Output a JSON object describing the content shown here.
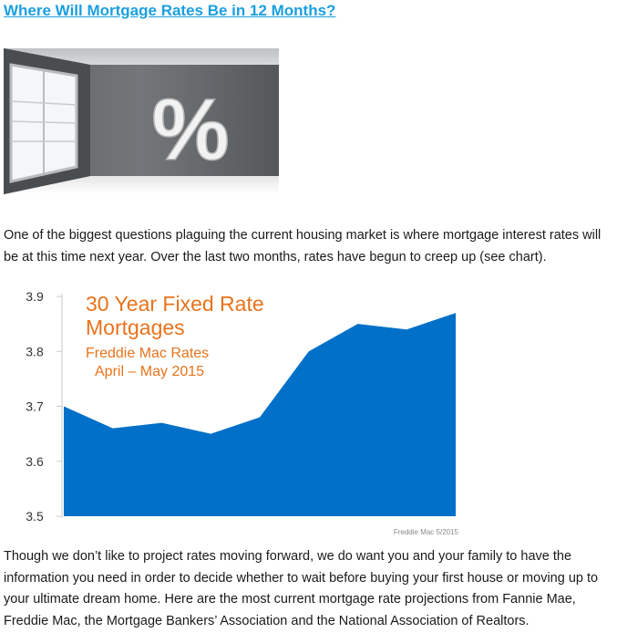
{
  "article": {
    "title": "Where Will Mortgage Rates Be in 12 Months?",
    "hero_symbol": "%",
    "paragraph1": "One of the biggest questions plaguing the current housing market is where mortgage interest rates will be at this time next year. Over the last two months, rates have begun to creep up (see chart).",
    "paragraph2": "Though we don’t like to project rates moving forward, we do want you and your family to have the information you need in order to decide whether to wait before buying your first house or moving up to your ultimate dream home. Here are the most current mortgage rate projections from Fannie Mae, Freddie Mac, the Mortgage Bankers’ Association and the National Association of Realtors."
  },
  "chart_data": {
    "type": "area",
    "title_line1": "30 Year Fixed Rate",
    "title_line2": "Mortgages",
    "subtitle_line1": "Freddie Mac Rates",
    "subtitle_line2": "April – May 2015",
    "source": "Freddie Mac 5/2015",
    "y_ticks": [
      "3.9",
      "3.8",
      "3.7",
      "3.6",
      "3.5"
    ],
    "ylim": [
      3.5,
      3.9
    ],
    "values": [
      3.7,
      3.66,
      3.67,
      3.65,
      3.68,
      3.8,
      3.85,
      3.84,
      3.87
    ],
    "grid": false,
    "colors": {
      "fill": "#0070c8",
      "title": "#e8731b",
      "axis_text": "#333333",
      "source_text": "#8a8a8a"
    }
  }
}
